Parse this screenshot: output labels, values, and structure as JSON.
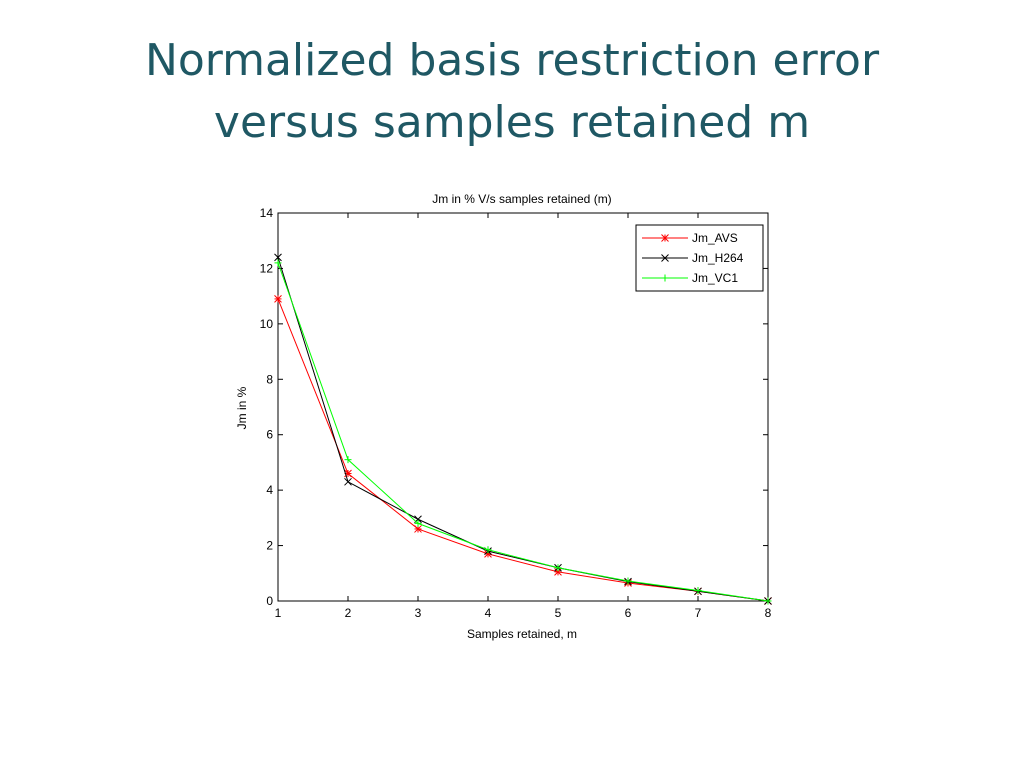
{
  "slide": {
    "title_line1": "Normalized basis restriction error",
    "title_line2": "versus samples retained m"
  },
  "chart_data": {
    "type": "line",
    "title": "Jm in % V/s samples retained (m)",
    "xlabel": "Samples retained, m",
    "ylabel": "Jm in %",
    "x": [
      1,
      2,
      3,
      4,
      5,
      6,
      7,
      8
    ],
    "xlim": [
      1,
      8
    ],
    "ylim": [
      0,
      14
    ],
    "xticks": [
      1,
      2,
      3,
      4,
      5,
      6,
      7,
      8
    ],
    "yticks": [
      0,
      2,
      4,
      6,
      8,
      10,
      12,
      14
    ],
    "grid": false,
    "legend_position": "top-right",
    "series": [
      {
        "name": "Jm_AVS",
        "color": "#ff0000",
        "marker": "asterisk",
        "values": [
          10.9,
          4.6,
          2.6,
          1.7,
          1.05,
          0.65,
          0.35,
          0.0
        ]
      },
      {
        "name": "Jm_H264",
        "color": "#000000",
        "marker": "x",
        "values": [
          12.4,
          4.3,
          2.95,
          1.8,
          1.2,
          0.7,
          0.35,
          0.0
        ]
      },
      {
        "name": "Jm_VC1",
        "color": "#00ff00",
        "marker": "plus",
        "values": [
          12.2,
          5.1,
          2.8,
          1.85,
          1.2,
          0.72,
          0.38,
          0.0
        ]
      }
    ]
  }
}
